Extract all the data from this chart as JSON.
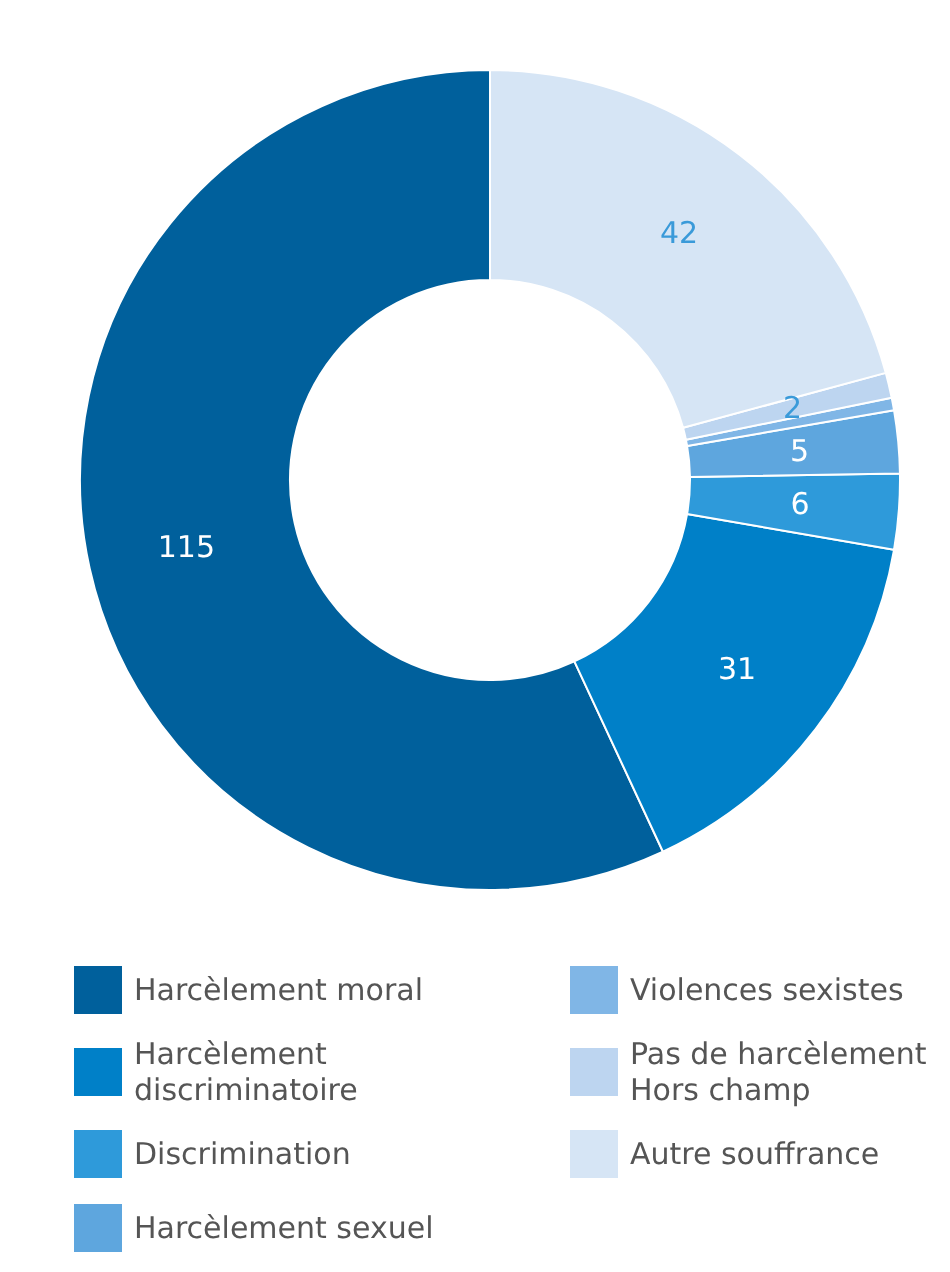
{
  "chart_data": {
    "type": "donut",
    "categories": [
      "Harcèlement moral",
      "Harcèlement discriminatoire",
      "Discrimination",
      "Harcèlement sexuel",
      "Violences sexistes",
      "Pas de harcèlement Hors champ",
      "Autre souffrance"
    ],
    "values": [
      115,
      31,
      6,
      5,
      1,
      2,
      42
    ],
    "value_labels": [
      "115",
      "31",
      "6",
      "5",
      null,
      "2",
      "42"
    ],
    "colors": [
      "#00609c",
      "#0080c8",
      "#2e9ada",
      "#5ea6de",
      "#80b6e6",
      "#bdd5f0",
      "#d6e5f5"
    ],
    "legend": "bottom"
  }
}
